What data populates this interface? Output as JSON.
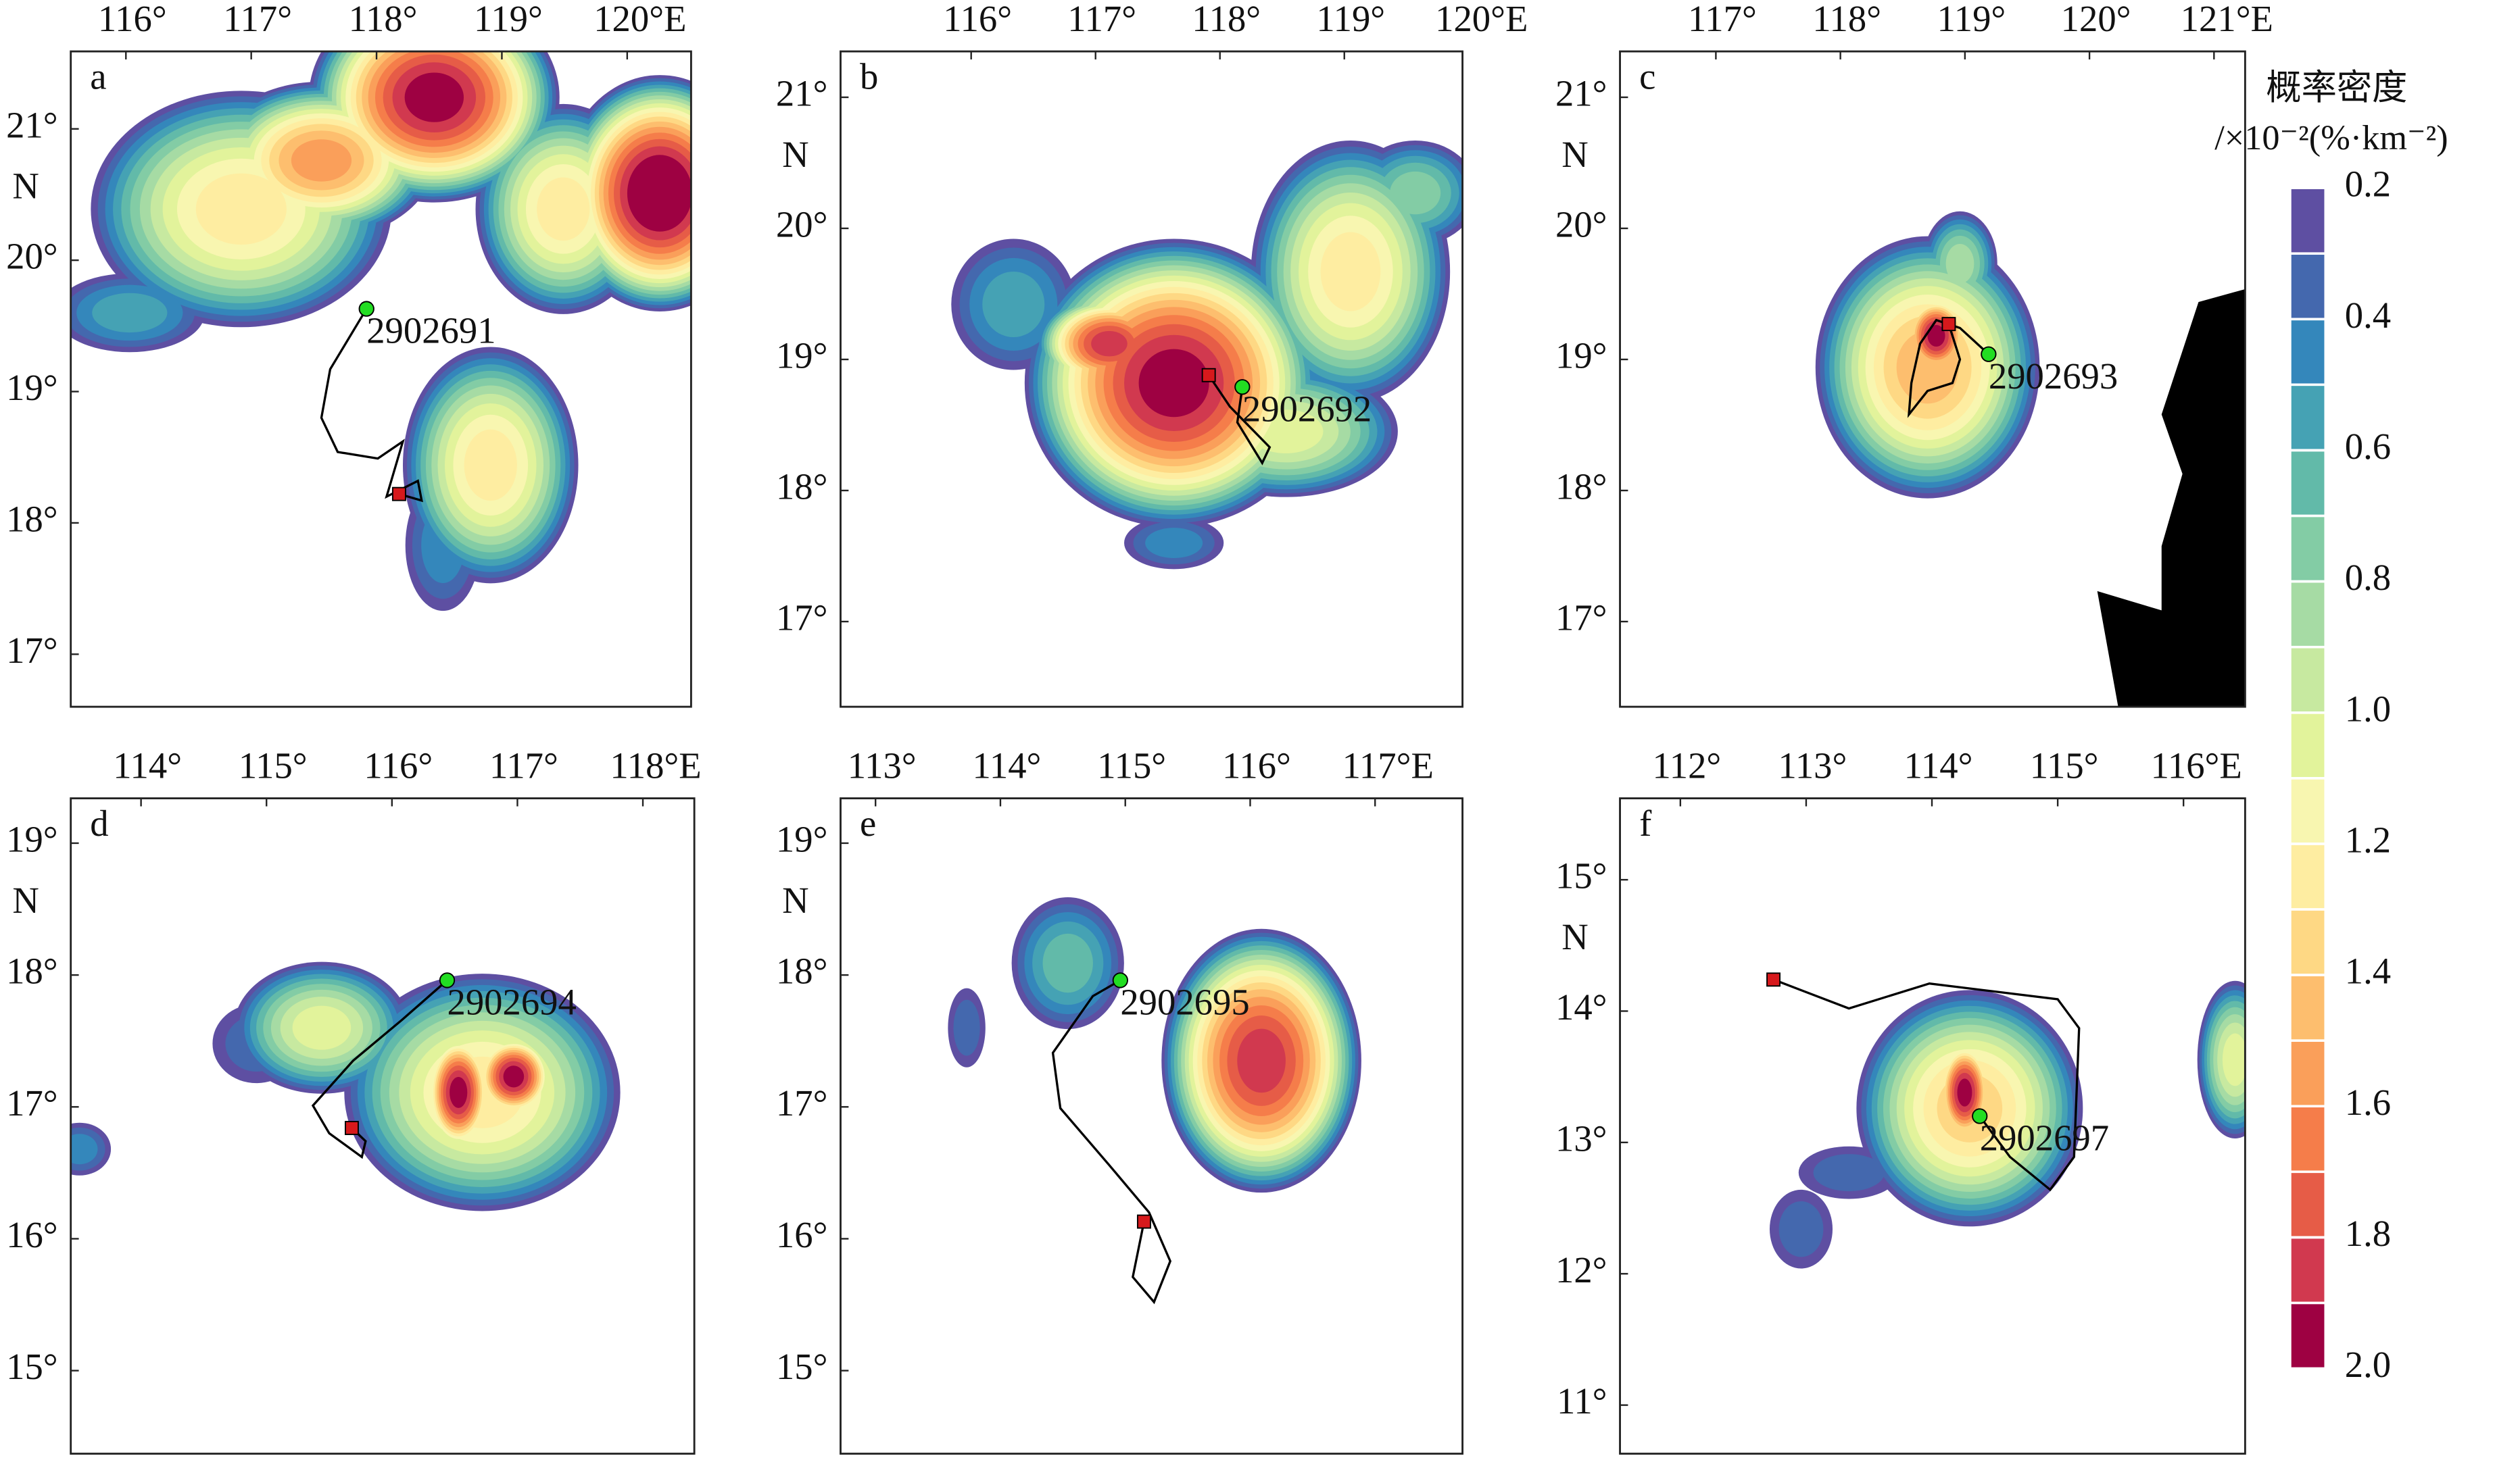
{
  "chart_data": [
    {
      "type": "contour-map",
      "label": "a",
      "ylabel": "N",
      "xlim": [
        115.56,
        120.51
      ],
      "ylim": [
        16.6,
        21.59
      ],
      "xticks": [
        {
          "value": 116,
          "label": "116°"
        },
        {
          "value": 117,
          "label": "117°"
        },
        {
          "value": 118,
          "label": "118°"
        },
        {
          "value": 119,
          "label": "119°"
        },
        {
          "value": 120,
          "label": "120°E"
        }
      ],
      "yticks": [
        {
          "value": 17,
          "label": "17°"
        },
        {
          "value": 18,
          "label": "18°"
        },
        {
          "value": 19,
          "label": "19°"
        },
        {
          "value": 20,
          "label": "20°"
        },
        {
          "value": 21,
          "label": "21°"
        }
      ],
      "blobs": [
        {
          "lon": 116.92,
          "lat": 20.39,
          "rx": 1.2,
          "ry": 0.9,
          "peak": 1.2
        },
        {
          "lon": 117.56,
          "lat": 20.76,
          "rx": 0.9,
          "ry": 0.6,
          "peak": 1.5
        },
        {
          "lon": 118.46,
          "lat": 21.24,
          "rx": 1.0,
          "ry": 0.8,
          "peak": 1.9
        },
        {
          "lon": 119.49,
          "lat": 20.39,
          "rx": 0.7,
          "ry": 0.8,
          "peak": 1.2
        },
        {
          "lon": 120.26,
          "lat": 20.51,
          "rx": 0.8,
          "ry": 0.9,
          "peak": 2.0
        },
        {
          "lon": 116.03,
          "lat": 19.6,
          "rx": 0.6,
          "ry": 0.3,
          "peak": 0.5
        },
        {
          "lon": 118.91,
          "lat": 18.44,
          "rx": 0.7,
          "ry": 0.9,
          "peak": 1.2
        },
        {
          "lon": 118.53,
          "lat": 17.83,
          "rx": 0.3,
          "ry": 0.5,
          "peak": 0.4
        }
      ],
      "track": {
        "id": "2902691",
        "lon": [
          117.92,
          117.63,
          117.56,
          117.69,
          118.01,
          118.21,
          118.08,
          118.33,
          118.36,
          118.18
        ],
        "lat": [
          19.63,
          19.17,
          18.8,
          18.54,
          18.49,
          18.62,
          18.2,
          18.32,
          18.17,
          18.22
        ]
      }
    },
    {
      "type": "contour-map",
      "label": "b",
      "ylabel": "N",
      "xlim": [
        114.95,
        119.95
      ],
      "ylim": [
        16.35,
        21.35
      ],
      "xticks": [
        {
          "value": 116,
          "label": "116°"
        },
        {
          "value": 117,
          "label": "117°"
        },
        {
          "value": 118,
          "label": "118°"
        },
        {
          "value": 119,
          "label": "119°"
        },
        {
          "value": 120,
          "label": "120°E"
        }
      ],
      "yticks": [
        {
          "value": 17,
          "label": "17°"
        },
        {
          "value": 18,
          "label": "18°"
        },
        {
          "value": 19,
          "label": "19°"
        },
        {
          "value": 20,
          "label": "20°"
        },
        {
          "value": 21,
          "label": "21°"
        }
      ],
      "blobs": [
        {
          "lon": 117.63,
          "lat": 18.82,
          "rx": 1.2,
          "ry": 1.1,
          "peak": 1.9
        },
        {
          "lon": 117.11,
          "lat": 19.12,
          "rx": 0.6,
          "ry": 0.4,
          "peak": 1.8
        },
        {
          "lon": 116.34,
          "lat": 19.42,
          "rx": 0.5,
          "ry": 0.5,
          "peak": 0.5
        },
        {
          "lon": 119.05,
          "lat": 19.67,
          "rx": 0.8,
          "ry": 1.0,
          "peak": 1.2
        },
        {
          "lon": 119.57,
          "lat": 20.27,
          "rx": 0.5,
          "ry": 0.4,
          "peak": 0.7
        },
        {
          "lon": 118.53,
          "lat": 18.45,
          "rx": 0.9,
          "ry": 0.5,
          "peak": 1.0
        },
        {
          "lon": 117.63,
          "lat": 17.6,
          "rx": 0.4,
          "ry": 0.2,
          "peak": 0.4
        }
      ],
      "track": {
        "id": "2902692",
        "lon": [
          118.18,
          118.14,
          118.34,
          118.4,
          118.08,
          117.91
        ],
        "lat": [
          18.79,
          18.52,
          18.21,
          18.33,
          18.64,
          18.88
        ]
      }
    },
    {
      "type": "contour-map",
      "label": "c",
      "ylabel": "N",
      "xlim": [
        116.23,
        121.25
      ],
      "ylim": [
        16.35,
        21.35
      ],
      "xticks": [
        {
          "value": 117,
          "label": "117°"
        },
        {
          "value": 118,
          "label": "118°"
        },
        {
          "value": 119,
          "label": "119°"
        },
        {
          "value": 120,
          "label": "120°"
        },
        {
          "value": 121,
          "label": "121°E"
        }
      ],
      "yticks": [
        {
          "value": 17,
          "label": "17°"
        },
        {
          "value": 18,
          "label": "18°"
        },
        {
          "value": 19,
          "label": "19°"
        },
        {
          "value": 20,
          "label": "20°"
        },
        {
          "value": 21,
          "label": "21°"
        }
      ],
      "blobs": [
        {
          "lon": 118.7,
          "lat": 18.94,
          "rx": 0.9,
          "ry": 1.0,
          "peak": 1.4
        },
        {
          "lon": 118.96,
          "lat": 19.73,
          "rx": 0.3,
          "ry": 0.4,
          "peak": 0.8
        },
        {
          "lon": 118.77,
          "lat": 19.18,
          "rx": 0.3,
          "ry": 0.35,
          "peak": 1.9
        }
      ],
      "track": {
        "id": "2902693",
        "lon": [
          119.19,
          118.96,
          118.77,
          118.64,
          118.57,
          118.55,
          118.7,
          118.9,
          118.96,
          118.87
        ],
        "lat": [
          19.04,
          19.24,
          19.3,
          19.12,
          18.82,
          18.58,
          18.76,
          18.82,
          19.0,
          19.27
        ]
      }
    },
    {
      "type": "contour-map",
      "label": "d",
      "ylabel": "N",
      "xlim": [
        113.44,
        118.41
      ],
      "ylim": [
        14.37,
        19.34
      ],
      "xticks": [
        {
          "value": 114,
          "label": "114°"
        },
        {
          "value": 115,
          "label": "115°"
        },
        {
          "value": 116,
          "label": "116°"
        },
        {
          "value": 117,
          "label": "117°"
        },
        {
          "value": 118,
          "label": "118°E"
        }
      ],
      "yticks": [
        {
          "value": 15,
          "label": "15°"
        },
        {
          "value": 16,
          "label": "16°"
        },
        {
          "value": 17,
          "label": "17°"
        },
        {
          "value": 18,
          "label": "18°"
        },
        {
          "value": 19,
          "label": "19°"
        }
      ],
      "blobs": [
        {
          "lon": 116.72,
          "lat": 17.11,
          "rx": 1.1,
          "ry": 0.9,
          "peak": 1.2
        },
        {
          "lon": 115.44,
          "lat": 17.6,
          "rx": 0.7,
          "ry": 0.5,
          "peak": 1.0
        },
        {
          "lon": 114.92,
          "lat": 17.48,
          "rx": 0.35,
          "ry": 0.3,
          "peak": 0.3
        },
        {
          "lon": 113.51,
          "lat": 16.68,
          "rx": 0.25,
          "ry": 0.2,
          "peak": 0.4
        },
        {
          "lon": 116.53,
          "lat": 17.11,
          "rx": 0.3,
          "ry": 0.5,
          "peak": 1.9
        },
        {
          "lon": 116.97,
          "lat": 17.23,
          "rx": 0.35,
          "ry": 0.35,
          "peak": 1.9
        }
      ],
      "track": {
        "id": "2902694",
        "lon": [
          116.44,
          116.08,
          115.69,
          115.37,
          115.5,
          115.76,
          115.79,
          115.68
        ],
        "lat": [
          17.96,
          17.66,
          17.35,
          17.01,
          16.8,
          16.62,
          16.74,
          16.84
        ]
      }
    },
    {
      "type": "contour-map",
      "label": "e",
      "ylabel": "N",
      "xlim": [
        112.72,
        117.7
      ],
      "ylim": [
        14.37,
        19.34
      ],
      "xticks": [
        {
          "value": 113,
          "label": "113°"
        },
        {
          "value": 114,
          "label": "114°"
        },
        {
          "value": 115,
          "label": "115°"
        },
        {
          "value": 116,
          "label": "116°"
        },
        {
          "value": 117,
          "label": "117°E"
        }
      ],
      "yticks": [
        {
          "value": 15,
          "label": "15°"
        },
        {
          "value": 16,
          "label": "16°"
        },
        {
          "value": 17,
          "label": "17°"
        },
        {
          "value": 18,
          "label": "18°"
        },
        {
          "value": 19,
          "label": "19°"
        }
      ],
      "blobs": [
        {
          "lon": 116.09,
          "lat": 17.35,
          "rx": 0.8,
          "ry": 1.0,
          "peak": 1.8
        },
        {
          "lon": 114.54,
          "lat": 18.09,
          "rx": 0.45,
          "ry": 0.5,
          "peak": 0.6
        },
        {
          "lon": 113.73,
          "lat": 17.6,
          "rx": 0.15,
          "ry": 0.3,
          "peak": 0.3
        }
      ],
      "track": {
        "id": "2902695",
        "lon": [
          114.96,
          114.74,
          114.42,
          114.48,
          114.87,
          115.19,
          115.36,
          115.23,
          115.06,
          115.15
        ],
        "lat": [
          17.96,
          17.84,
          17.41,
          16.99,
          16.56,
          16.2,
          15.83,
          15.52,
          15.71,
          16.13
        ]
      }
    },
    {
      "type": "contour-map",
      "label": "f",
      "ylabel": "N",
      "xlim": [
        111.52,
        116.49
      ],
      "ylim": [
        10.63,
        15.62
      ],
      "xticks": [
        {
          "value": 112,
          "label": "112°"
        },
        {
          "value": 113,
          "label": "113°"
        },
        {
          "value": 114,
          "label": "114°"
        },
        {
          "value": 115,
          "label": "115°"
        },
        {
          "value": 116,
          "label": "116°E"
        }
      ],
      "yticks": [
        {
          "value": 11,
          "label": "11°"
        },
        {
          "value": 12,
          "label": "12°"
        },
        {
          "value": 13,
          "label": "13°"
        },
        {
          "value": 14,
          "label": "14°"
        },
        {
          "value": 15,
          "label": "15°"
        }
      ],
      "blobs": [
        {
          "lon": 114.3,
          "lat": 13.26,
          "rx": 0.9,
          "ry": 0.9,
          "peak": 1.3
        },
        {
          "lon": 112.96,
          "lat": 12.34,
          "rx": 0.25,
          "ry": 0.3,
          "peak": 0.3
        },
        {
          "lon": 113.34,
          "lat": 12.77,
          "rx": 0.4,
          "ry": 0.2,
          "peak": 0.3
        },
        {
          "lon": 116.41,
          "lat": 13.63,
          "rx": 0.3,
          "ry": 0.6,
          "peak": 1.0
        },
        {
          "lon": 114.26,
          "lat": 13.38,
          "rx": 0.25,
          "ry": 0.45,
          "peak": 1.9
        }
      ],
      "track": {
        "id": "2902697",
        "lon": [
          114.38,
          114.62,
          114.94,
          115.13,
          115.17,
          115.0,
          113.98,
          113.34,
          112.74
        ],
        "lat": [
          13.2,
          12.89,
          12.64,
          12.89,
          13.87,
          14.09,
          14.21,
          14.02,
          14.24
        ]
      }
    }
  ],
  "colorbar": {
    "title": [
      "概率密度",
      "/×10⁻²(%·km⁻²)"
    ],
    "levels": [
      0.2,
      0.3,
      0.4,
      0.5,
      0.6,
      0.7,
      0.8,
      0.9,
      1.0,
      1.1,
      1.2,
      1.3,
      1.4,
      1.5,
      1.6,
      1.7,
      1.8,
      1.9,
      2.0
    ],
    "colors": [
      "#5e4fa2",
      "#4468ae",
      "#3487bb",
      "#45a2b4",
      "#62baa9",
      "#83cca5",
      "#a6dba4",
      "#c7e9a0",
      "#e2f39b",
      "#f8f6b0",
      "#feeda1",
      "#fed884",
      "#fdbe6e",
      "#fa9f5a",
      "#f57d4a",
      "#e65c47",
      "#d1394f",
      "#9e0142"
    ],
    "ticks": [
      0.2,
      0.4,
      0.6,
      0.8,
      {
        "value": 1.0,
        "label": "1.0"
      },
      1.2,
      1.4,
      1.6,
      1.8,
      {
        "value": 2.0,
        "label": "2.0"
      }
    ]
  }
}
